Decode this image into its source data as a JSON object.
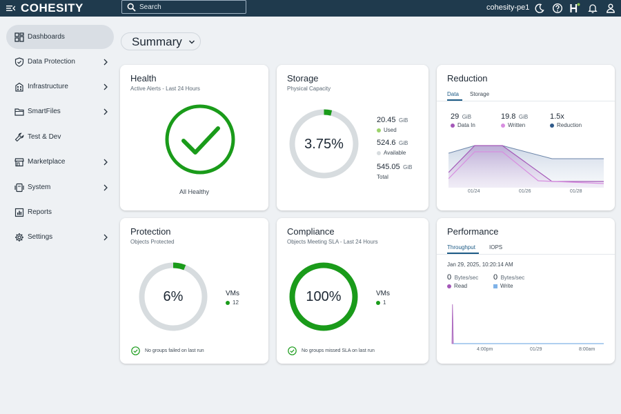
{
  "header": {
    "logo": "COHESITY",
    "search_placeholder": "Search",
    "cluster": "cohesity-pe1"
  },
  "sidebar": {
    "items": [
      {
        "label": "Dashboards",
        "icon": "dashboard-icon",
        "active": true
      },
      {
        "label": "Data Protection",
        "icon": "shield-icon"
      },
      {
        "label": "Infrastructure",
        "icon": "building-icon"
      },
      {
        "label": "SmartFiles",
        "icon": "folder-icon"
      },
      {
        "label": "Test & Dev",
        "icon": "wrench-icon"
      },
      {
        "label": "Marketplace",
        "icon": "store-icon"
      },
      {
        "label": "System",
        "icon": "system-icon"
      },
      {
        "label": "Reports",
        "icon": "reports-icon"
      },
      {
        "label": "Settings",
        "icon": "gear-icon"
      }
    ]
  },
  "summary": {
    "label": "Summary"
  },
  "health": {
    "title": "Health",
    "subtitle": "Active Alerts - Last 24 Hours",
    "status": "All Healthy"
  },
  "storage": {
    "title": "Storage",
    "subtitle": "Physical Capacity",
    "percent_label": "3.75%",
    "percent": 3.75,
    "used_value": "20.45",
    "used_unit": "GiB",
    "used_label": "Used",
    "available_value": "524.6",
    "available_unit": "GiB",
    "available_label": "Available",
    "total_value": "545.05",
    "total_unit": "GiB",
    "total_label": "Total"
  },
  "reduction": {
    "title": "Reduction",
    "tabs": [
      "Data",
      "Storage"
    ],
    "data_in_value": "29",
    "data_in_unit": "GiB",
    "data_in_label": "Data In",
    "written_value": "19.8",
    "written_unit": "GiB",
    "written_label": "Written",
    "reduction_value": "1.5x",
    "reduction_label": "Reduction",
    "x_ticks": [
      "01/24",
      "01/26",
      "01/28"
    ]
  },
  "protection": {
    "title": "Protection",
    "subtitle": "Objects Protected",
    "percent_label": "6%",
    "percent": 6,
    "vms_label": "VMs",
    "vms_count": "12",
    "note": "No groups failed on last run"
  },
  "compliance": {
    "title": "Compliance",
    "subtitle": "Objects Meeting SLA - Last 24 Hours",
    "percent_label": "100%",
    "percent": 100,
    "vms_label": "VMs",
    "vms_count": "1",
    "note": "No groups missed SLA on last run"
  },
  "performance": {
    "title": "Performance",
    "tabs": [
      "Throughput",
      "IOPS"
    ],
    "timestamp": "Jan 29, 2025, 10:20:14 AM",
    "read_value": "0",
    "read_unit": "Bytes/sec",
    "read_label": "Read",
    "write_value": "0",
    "write_unit": "Bytes/sec",
    "write_label": "Write",
    "x_ticks": [
      "4:00pm",
      "01/29",
      "8:00am"
    ]
  },
  "colors": {
    "topbar": "#1f3a4d",
    "ok_green": "#1a9b1a",
    "ring_gray": "#d7dcdf",
    "data_in": "#a458b8",
    "written": "#d88ee0",
    "reduction": "#2f5a8a",
    "write": "#7fb2e8"
  }
}
